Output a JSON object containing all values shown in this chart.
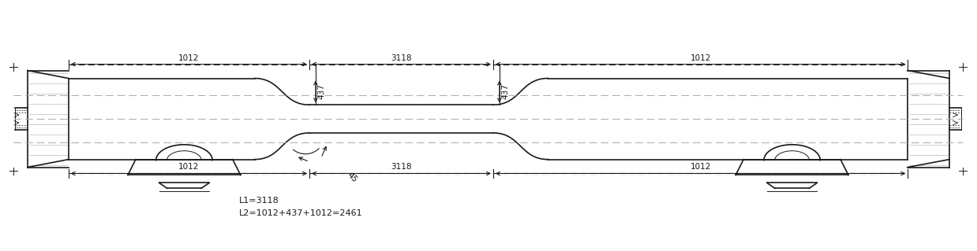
{
  "bg_color": "#ffffff",
  "line_color": "#1a1a1a",
  "gray_color": "#aaaaaa",
  "fig_width": 12.38,
  "fig_height": 3.19,
  "L1": "L1=3118",
  "L2": "L2=1012+437+1012=2461",
  "dims": {
    "top_1012_left": "1012",
    "top_437_left": "437",
    "top_3118": "3118",
    "top_437_right": "437",
    "top_1012_right": "1012",
    "bot_1012_left": "1012",
    "bot_3118": "3118",
    "bot_1012_right": "1012",
    "angle": "45"
  }
}
